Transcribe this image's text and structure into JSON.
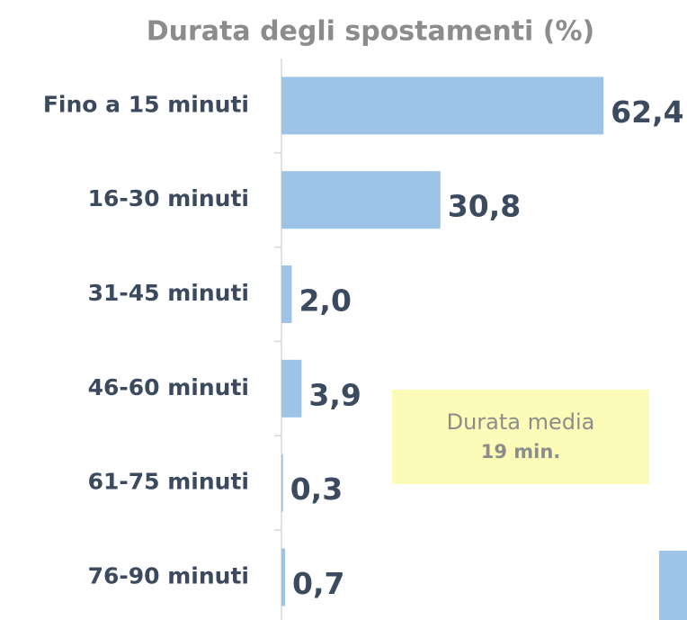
{
  "chart_data": {
    "type": "bar",
    "orientation": "horizontal",
    "title": "Durata degli spostamenti (%)",
    "categories": [
      "Fino a 15 minuti",
      "16-30 minuti",
      "31-45 minuti",
      "46-60 minuti",
      "61-75 minuti",
      "76-90 minuti"
    ],
    "values": [
      62.4,
      30.8,
      2.0,
      3.9,
      0.3,
      0.7
    ],
    "value_labels": [
      "62,4",
      "30,8",
      "2,0",
      "3,9",
      "0,3",
      "0,7"
    ],
    "color": "#9dc3e6",
    "annotation": {
      "line1": "Durata media",
      "line2": "19 min."
    }
  }
}
